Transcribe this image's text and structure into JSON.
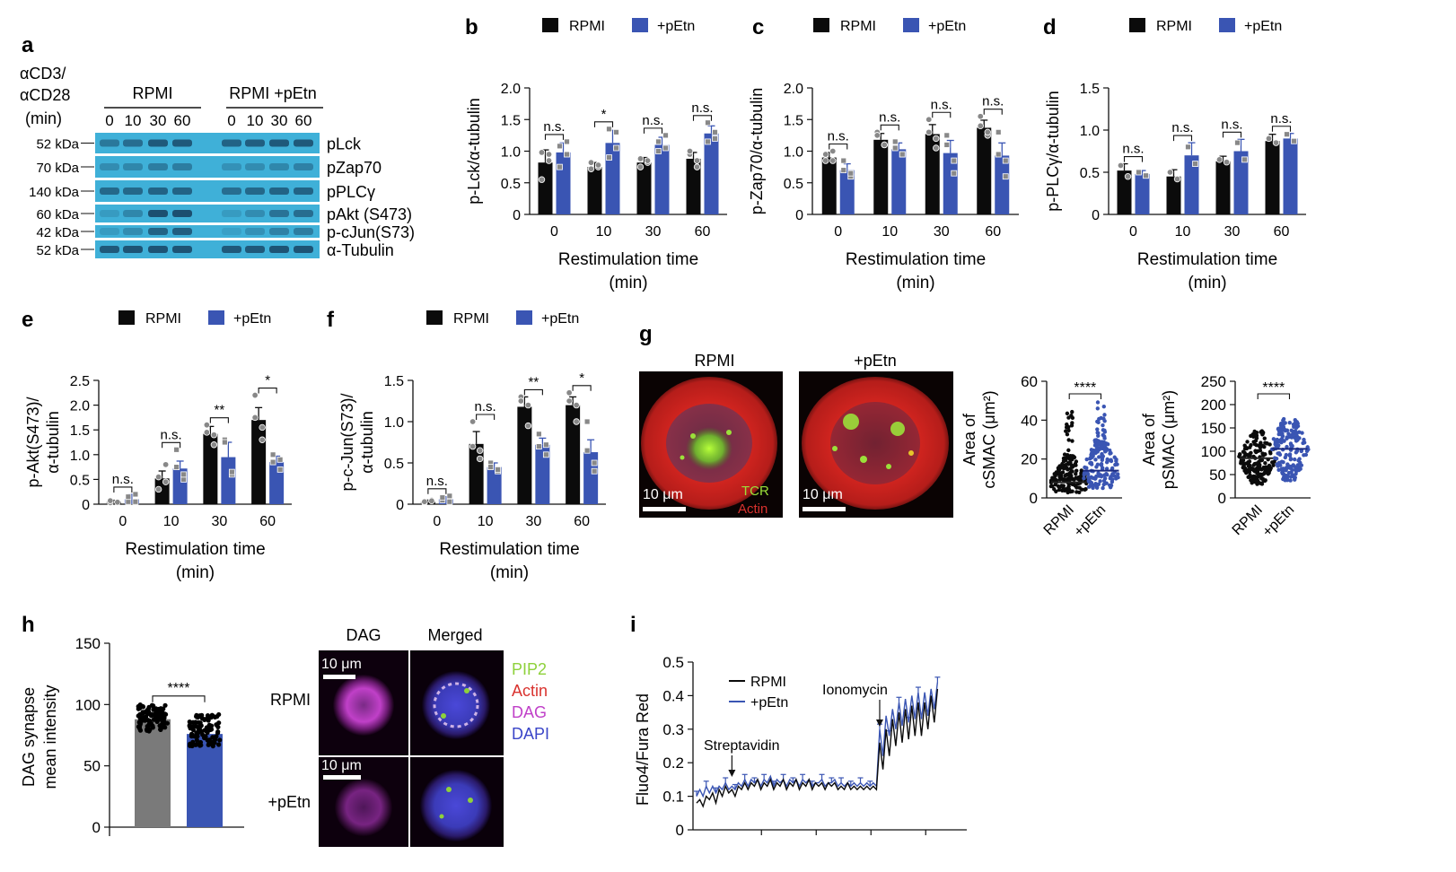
{
  "colors": {
    "rpmi": "#0b0b0b",
    "petn": "#3a55b3",
    "gray": "#7a7a7a",
    "blot_bg": "#3fb0d8",
    "blot_band": "#1a4a6a"
  },
  "legend": {
    "rpmi": "RPMI",
    "petn": "+pEtn"
  },
  "panel_a": {
    "letter": "a",
    "stim_label": [
      "αCD3/",
      "αCD28",
      "(min)"
    ],
    "group_labels": [
      "RPMI",
      "RPMI +pEtn"
    ],
    "times_rpmi": [
      "0",
      "10",
      "30",
      "60"
    ],
    "times_petn": [
      "0",
      "10",
      "30",
      "60"
    ],
    "kda": [
      "52 kDa",
      "70 kDa",
      "140 kDa",
      "60 kDa",
      "42 kDa",
      "52 kDa"
    ],
    "proteins": [
      "pLck",
      "pZap70",
      "pPLCγ",
      "pAkt (S473)",
      "p-cJun(S73)",
      "α-Tubulin"
    ],
    "intensity": [
      [
        0.55,
        0.65,
        0.85,
        0.85,
        0.75,
        0.8,
        0.85,
        0.85
      ],
      [
        0.35,
        0.4,
        0.5,
        0.5,
        0.3,
        0.35,
        0.4,
        0.45
      ],
      [
        0.7,
        0.7,
        0.75,
        0.75,
        0.65,
        0.7,
        0.75,
        0.75
      ],
      [
        0.2,
        0.4,
        0.95,
        0.95,
        0.2,
        0.35,
        0.6,
        0.65
      ],
      [
        0.2,
        0.35,
        0.75,
        0.8,
        0.15,
        0.3,
        0.45,
        0.5
      ],
      [
        0.85,
        0.9,
        0.9,
        0.9,
        0.85,
        0.85,
        0.9,
        0.9
      ]
    ]
  },
  "panel_g": {
    "letter": "g",
    "image_labels": [
      "RPMI",
      "+pEtn"
    ],
    "scale_labels": [
      "10 μm",
      "10 μm"
    ],
    "channel_labels": [
      "TCR",
      "Actin"
    ]
  },
  "panel_h": {
    "letter": "h",
    "col_labels": [
      "DAG",
      "Merged"
    ],
    "row_labels": [
      "RPMI",
      "+pEtn"
    ],
    "scale_labels": [
      "10 μm",
      "10 μm"
    ],
    "channels": [
      "PIP2",
      "Actin",
      "DAG",
      "DAPI"
    ],
    "channel_colors": [
      "#8ed13b",
      "#d9322e",
      "#c040c8",
      "#3a45c8"
    ]
  },
  "chart_data": [
    {
      "id": "b",
      "letter": "b",
      "type": "bar",
      "categories": [
        "0",
        "10",
        "30",
        "60"
      ],
      "series": [
        {
          "name": "RPMI",
          "values": [
            0.82,
            0.75,
            0.82,
            0.88
          ]
        },
        {
          "name": "+pEtn",
          "values": [
            0.98,
            1.13,
            1.1,
            1.28
          ]
        }
      ],
      "errors": [
        [
          0.2,
          0.07,
          0.08,
          0.1
        ],
        [
          0.15,
          0.2,
          0.12,
          0.12
        ]
      ],
      "points": [
        [
          [
            0.98,
            0.85,
            0.55,
            0.95
          ],
          [
            0.82,
            0.75,
            0.72,
            0.78
          ],
          [
            0.88,
            0.82,
            0.75,
            0.85
          ],
          [
            0.95,
            0.75,
            1.0,
            0.85
          ]
        ],
        [
          [
            1.08,
            0.95,
            0.75,
            1.15
          ],
          [
            1.35,
            1.05,
            0.9,
            1.3
          ],
          [
            1.15,
            1.05,
            1.0,
            1.25
          ],
          [
            1.45,
            1.2,
            1.15,
            1.3
          ]
        ]
      ],
      "significance": [
        "n.s.",
        "*",
        "n.s.",
        "n.s."
      ],
      "ylim": [
        0,
        2.0
      ],
      "yticks": [
        "0",
        "0.5",
        "1.0",
        "1.5",
        "2.0"
      ],
      "ylabel": [
        "p-Lck/α-tubulin"
      ],
      "xlabel": [
        "Restimulation time",
        "(min)"
      ]
    },
    {
      "id": "c",
      "letter": "c",
      "type": "bar",
      "categories": [
        "0",
        "10",
        "30",
        "60"
      ],
      "series": [
        {
          "name": "RPMI",
          "values": [
            0.9,
            1.18,
            1.27,
            1.37
          ]
        },
        {
          "name": "+pEtn",
          "values": [
            0.7,
            1.03,
            0.97,
            0.93
          ]
        }
      ],
      "errors": [
        [
          0.08,
          0.1,
          0.15,
          0.12
        ],
        [
          0.1,
          0.1,
          0.2,
          0.2
        ]
      ],
      "points": [
        [
          [
            0.85,
            1.0,
            0.95,
            0.85
          ],
          [
            1.3,
            1.1,
            1.25,
            1.1
          ],
          [
            1.5,
            1.2,
            1.3,
            1.05
          ],
          [
            1.55,
            1.25,
            1.4,
            1.3
          ]
        ],
        [
          [
            0.85,
            0.6,
            0.7,
            0.65
          ],
          [
            1.15,
            0.95,
            1.05,
            0.95
          ],
          [
            1.25,
            0.85,
            1.1,
            0.65
          ],
          [
            1.3,
            0.85,
            0.95,
            0.6
          ]
        ]
      ],
      "significance": [
        "n.s.",
        "n.s.",
        "n.s.",
        "n.s."
      ],
      "ylim": [
        0,
        2.0
      ],
      "yticks": [
        "0",
        "0.5",
        "1.0",
        "1.5",
        "2.0"
      ],
      "ylabel": [
        "p-Zap70/α-tubulin"
      ],
      "xlabel": [
        "Restimulation time",
        "(min)"
      ]
    },
    {
      "id": "d",
      "letter": "d",
      "type": "bar",
      "categories": [
        "0",
        "10",
        "30",
        "60"
      ],
      "series": [
        {
          "name": "RPMI",
          "values": [
            0.52,
            0.45,
            0.63,
            0.87
          ]
        },
        {
          "name": "+pEtn",
          "values": [
            0.48,
            0.7,
            0.75,
            0.9
          ]
        }
      ],
      "errors": [
        [
          0.08,
          0.08,
          0.06,
          0.08
        ],
        [
          0.04,
          0.15,
          0.14,
          0.06
        ]
      ],
      "points": [
        [
          [
            0.58,
            0.45
          ],
          [
            0.5,
            0.42
          ],
          [
            0.65,
            0.62
          ],
          [
            0.9,
            0.85
          ]
        ],
        [
          [
            0.5,
            0.46
          ],
          [
            0.8,
            0.6
          ],
          [
            0.85,
            0.65
          ],
          [
            0.95,
            0.87
          ]
        ]
      ],
      "significance": [
        "n.s.",
        "n.s.",
        "n.s.",
        "n.s."
      ],
      "ylim": [
        0,
        1.5
      ],
      "yticks": [
        "0",
        "0.5",
        "1.0",
        "1.5"
      ],
      "ylabel": [
        "p-PLCγ/α-tubulin"
      ],
      "xlabel": [
        "Restimulation time",
        "(min)"
      ]
    },
    {
      "id": "e",
      "letter": "e",
      "type": "bar",
      "categories": [
        "0",
        "10",
        "30",
        "60"
      ],
      "series": [
        {
          "name": "RPMI",
          "values": [
            0.05,
            0.52,
            1.42,
            1.7
          ]
        },
        {
          "name": "+pEtn",
          "values": [
            0.1,
            0.72,
            0.95,
            0.85
          ]
        }
      ],
      "errors": [
        [
          0.03,
          0.15,
          0.15,
          0.25
        ],
        [
          0.1,
          0.15,
          0.3,
          0.12
        ]
      ],
      "points": [
        [
          [
            0.03,
            0.05,
            0.07,
            0.04
          ],
          [
            0.3,
            0.8,
            0.55,
            0.45
          ],
          [
            1.6,
            1.2,
            1.45,
            1.4
          ],
          [
            2.2,
            1.3,
            1.75,
            1.55
          ]
        ],
        [
          [
            0.05,
            0.2,
            0.15,
            0.05
          ],
          [
            1.1,
            0.5,
            0.75,
            0.6
          ],
          [
            1.3,
            0.6,
            1.25,
            0.65
          ],
          [
            1.0,
            0.7,
            0.85,
            0.9
          ]
        ]
      ],
      "significance": [
        "n.s.",
        "n.s.",
        "**",
        "*"
      ],
      "ylim": [
        0,
        2.5
      ],
      "yticks": [
        "0",
        "0.5",
        "1.0",
        "1.5",
        "2.0",
        "2.5"
      ],
      "ylabel": [
        "p-Akt(S473)/",
        "α-tubulin"
      ],
      "xlabel": [
        "Restimulation time",
        "(min)"
      ]
    },
    {
      "id": "f",
      "letter": "f",
      "type": "bar",
      "categories": [
        "0",
        "10",
        "30",
        "60"
      ],
      "series": [
        {
          "name": "RPMI",
          "values": [
            0.03,
            0.73,
            1.18,
            1.2
          ]
        },
        {
          "name": "+pEtn",
          "values": [
            0.06,
            0.45,
            0.72,
            0.63
          ]
        }
      ],
      "errors": [
        [
          0.02,
          0.15,
          0.12,
          0.1
        ],
        [
          0.03,
          0.05,
          0.08,
          0.15
        ]
      ],
      "points": [
        [
          [
            0.02,
            0.05,
            0.03,
            0.04
          ],
          [
            1.0,
            0.55,
            0.7,
            0.65
          ],
          [
            1.3,
            0.95,
            1.25,
            1.2
          ],
          [
            1.35,
            1.0,
            1.25,
            1.2
          ]
        ],
        [
          [
            0.05,
            0.1,
            0.08,
            0.03
          ],
          [
            0.5,
            0.4,
            0.45,
            0.42
          ],
          [
            0.85,
            0.6,
            0.7,
            0.72
          ],
          [
            1.0,
            0.4,
            0.65,
            0.5
          ]
        ]
      ],
      "significance": [
        "n.s.",
        "n.s.",
        "**",
        "*"
      ],
      "ylim": [
        0,
        1.5
      ],
      "yticks": [
        "0",
        "0.5",
        "1.0",
        "1.5"
      ],
      "ylabel": [
        "p-c-Jun(S73)/",
        "α-tubulin"
      ],
      "xlabel": [
        "Restimulation time",
        "(min)"
      ]
    },
    {
      "id": "g1",
      "type": "scatter",
      "categories": [
        "RPMI",
        "+pEtn"
      ],
      "medians": [
        8,
        14
      ],
      "spread_max": [
        46,
        50
      ],
      "typical_max": [
        22,
        30
      ],
      "significance": "****",
      "ylim": [
        0,
        60
      ],
      "yticks": [
        "0",
        "20",
        "40",
        "60"
      ],
      "ylabel": [
        "Area of",
        "cSMAC (μm²)"
      ]
    },
    {
      "id": "g2",
      "type": "scatter",
      "categories": [
        "RPMI",
        "+pEtn"
      ],
      "medians": [
        85,
        105
      ],
      "spread_max": [
        145,
        170
      ],
      "typical_max": [
        120,
        150
      ],
      "significance": "****",
      "ylim": [
        0,
        250
      ],
      "yticks": [
        "0",
        "50",
        "100",
        "150",
        "200",
        "250"
      ],
      "ylabel": [
        "Area of",
        "pSMAC (μm²)"
      ]
    },
    {
      "id": "h",
      "type": "bar",
      "categories": [
        "RPMI",
        "+pEtn"
      ],
      "values": [
        88,
        76
      ],
      "spread": [
        [
          78,
          100
        ],
        [
          66,
          92
        ]
      ],
      "significance": "****",
      "ylim": [
        0,
        150
      ],
      "yticks": [
        "0",
        "50",
        "100",
        "150"
      ],
      "ylabel": [
        "DAG synapse",
        "mean intensity"
      ]
    },
    {
      "id": "i",
      "letter": "i",
      "type": "line",
      "series": [
        {
          "name": "RPMI",
          "x": [
            0,
            2,
            4,
            6,
            8,
            10,
            12,
            14,
            16,
            18,
            20,
            22,
            24,
            26,
            28,
            30,
            32,
            34,
            36,
            38,
            40,
            42,
            44,
            46,
            48,
            50,
            52,
            54,
            56,
            58,
            60,
            62,
            64,
            66,
            68,
            70,
            72,
            74,
            76,
            78,
            80,
            82,
            84,
            86,
            88,
            90,
            92,
            94,
            96,
            98,
            100,
            102,
            104,
            106,
            108,
            110,
            112,
            114,
            116,
            118,
            120,
            122,
            124,
            126,
            128,
            130,
            132,
            134,
            136,
            138,
            140,
            142,
            144,
            146,
            148,
            150
          ],
          "y": [
            0.08,
            0.09,
            0.07,
            0.1,
            0.09,
            0.11,
            0.08,
            0.12,
            0.1,
            0.13,
            0.11,
            0.12,
            0.1,
            0.13,
            0.12,
            0.14,
            0.12,
            0.14,
            0.13,
            0.15,
            0.12,
            0.14,
            0.13,
            0.15,
            0.12,
            0.14,
            0.13,
            0.15,
            0.12,
            0.14,
            0.13,
            0.15,
            0.12,
            0.14,
            0.13,
            0.15,
            0.12,
            0.14,
            0.13,
            0.14,
            0.12,
            0.14,
            0.13,
            0.14,
            0.12,
            0.13,
            0.12,
            0.14,
            0.12,
            0.13,
            0.12,
            0.13,
            0.12,
            0.13,
            0.12,
            0.13,
            0.12,
            0.26,
            0.18,
            0.3,
            0.22,
            0.33,
            0.25,
            0.35,
            0.26,
            0.36,
            0.27,
            0.37,
            0.28,
            0.38,
            0.28,
            0.38,
            0.3,
            0.4,
            0.32,
            0.42
          ]
        },
        {
          "name": "+pEtn",
          "x": [
            0,
            2,
            4,
            6,
            8,
            10,
            12,
            14,
            16,
            18,
            20,
            22,
            24,
            26,
            28,
            30,
            32,
            34,
            36,
            38,
            40,
            42,
            44,
            46,
            48,
            50,
            52,
            54,
            56,
            58,
            60,
            62,
            64,
            66,
            68,
            70,
            72,
            74,
            76,
            78,
            80,
            82,
            84,
            86,
            88,
            90,
            92,
            94,
            96,
            98,
            100,
            102,
            104,
            106,
            108,
            110,
            112,
            114,
            116,
            118,
            120,
            122,
            124,
            126,
            128,
            130,
            132,
            134,
            136,
            138,
            140,
            142,
            144,
            146,
            148,
            150
          ],
          "y": [
            0.1,
            0.12,
            0.1,
            0.13,
            0.11,
            0.13,
            0.11,
            0.13,
            0.12,
            0.14,
            0.12,
            0.13,
            0.12,
            0.14,
            0.13,
            0.15,
            0.13,
            0.15,
            0.14,
            0.15,
            0.13,
            0.15,
            0.14,
            0.16,
            0.13,
            0.15,
            0.14,
            0.15,
            0.13,
            0.15,
            0.14,
            0.15,
            0.13,
            0.15,
            0.14,
            0.15,
            0.13,
            0.14,
            0.14,
            0.15,
            0.13,
            0.14,
            0.14,
            0.15,
            0.13,
            0.14,
            0.13,
            0.14,
            0.13,
            0.14,
            0.13,
            0.14,
            0.13,
            0.14,
            0.13,
            0.14,
            0.13,
            0.3,
            0.22,
            0.34,
            0.28,
            0.36,
            0.3,
            0.38,
            0.31,
            0.39,
            0.32,
            0.4,
            0.33,
            0.41,
            0.33,
            0.41,
            0.34,
            0.42,
            0.36,
            0.44
          ]
        }
      ],
      "ylim": [
        0,
        0.5
      ],
      "yticks": [
        "0",
        "0.1",
        "0.2",
        "0.3",
        "0.4",
        "0.5"
      ],
      "ylabel": [
        "Fluo4/Fura Red"
      ],
      "annotations": [
        "Streptavidin",
        "Ionomycin"
      ],
      "annotation_x": [
        22,
        114
      ]
    }
  ]
}
